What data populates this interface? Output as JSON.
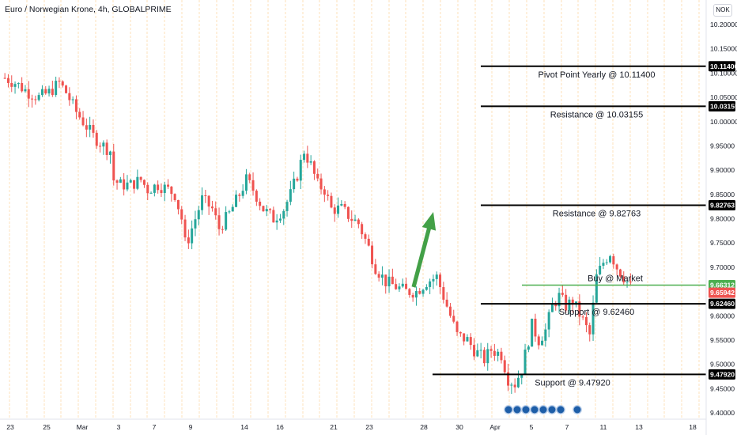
{
  "header": {
    "title": "Euro / Norwegian Krone, 4h, GLOBALPRIME",
    "currency": "NOK"
  },
  "colors": {
    "up": "#26a69a",
    "down": "#ef5350",
    "session_band": "#fde7c6",
    "level_line": "#000000",
    "buy_line": "#4caf50",
    "arrow": "#43a047",
    "event_dot": "#1e5ea8"
  },
  "chart_data": {
    "type": "candlestick",
    "title": "Euro / Norwegian Krone, 4h, GLOBALPRIME",
    "y_axis": {
      "ylim": [
        9.4,
        10.2
      ],
      "ticks": [
        "9.40000",
        "9.45000",
        "9.50000",
        "9.55000",
        "9.60000",
        "9.65000",
        "9.70000",
        "9.75000",
        "9.80000",
        "9.85000",
        "9.90000",
        "9.95000",
        "10.00000",
        "10.05000",
        "10.10000",
        "10.15000",
        "10.20000"
      ]
    },
    "x_axis": {
      "ticks": [
        "23",
        "25",
        "Mar",
        "3",
        "7",
        "9",
        "14",
        "16",
        "21",
        "23",
        "28",
        "30",
        "Apr",
        "5",
        "7",
        "11",
        "13",
        "18"
      ]
    },
    "price_path": [
      [
        0,
        10.09
      ],
      [
        3,
        10.08
      ],
      [
        7,
        10.06
      ],
      [
        10,
        10.05
      ],
      [
        13,
        10.06
      ],
      [
        16,
        10.08
      ],
      [
        18,
        10.06
      ],
      [
        21,
        10.02
      ],
      [
        23,
        10.0
      ],
      [
        26,
        9.97
      ],
      [
        29,
        9.95
      ],
      [
        31,
        9.94
      ],
      [
        32,
        9.88
      ],
      [
        34,
        9.87
      ],
      [
        37,
        9.87
      ],
      [
        40,
        9.88
      ],
      [
        42,
        9.86
      ],
      [
        45,
        9.87
      ],
      [
        48,
        9.86
      ],
      [
        50,
        9.85
      ],
      [
        52,
        9.8
      ],
      [
        53,
        9.75
      ],
      [
        54,
        9.76
      ],
      [
        56,
        9.8
      ],
      [
        58,
        9.84
      ],
      [
        61,
        9.82
      ],
      [
        63,
        9.78
      ],
      [
        66,
        9.81
      ],
      [
        69,
        9.85
      ],
      [
        71,
        9.88
      ],
      [
        73,
        9.86
      ],
      [
        76,
        9.82
      ],
      [
        79,
        9.8
      ],
      [
        82,
        9.82
      ],
      [
        84,
        9.85
      ],
      [
        86,
        9.89
      ],
      [
        88,
        9.94
      ],
      [
        90,
        9.91
      ],
      [
        92,
        9.87
      ],
      [
        94,
        9.86
      ],
      [
        96,
        9.82
      ],
      [
        99,
        9.82
      ],
      [
        102,
        9.8
      ],
      [
        104,
        9.79
      ],
      [
        107,
        9.74
      ],
      [
        109,
        9.7
      ],
      [
        112,
        9.67
      ],
      [
        115,
        9.66
      ],
      [
        118,
        9.65
      ],
      [
        121,
        9.65
      ],
      [
        124,
        9.67
      ],
      [
        127,
        9.68
      ],
      [
        129,
        9.64
      ],
      [
        131,
        9.6
      ],
      [
        133,
        9.56
      ],
      [
        136,
        9.55
      ],
      [
        138,
        9.53
      ],
      [
        141,
        9.51
      ],
      [
        143,
        9.53
      ],
      [
        146,
        9.52
      ],
      [
        148,
        9.47
      ],
      [
        150,
        9.46
      ],
      [
        152,
        9.49
      ],
      [
        154,
        9.55
      ],
      [
        155,
        9.58
      ],
      [
        157,
        9.55
      ],
      [
        159,
        9.57
      ],
      [
        161,
        9.62
      ],
      [
        163,
        9.64
      ],
      [
        165,
        9.62
      ],
      [
        167,
        9.63
      ],
      [
        170,
        9.59
      ],
      [
        172,
        9.56
      ],
      [
        173,
        9.62
      ],
      [
        174,
        9.68
      ],
      [
        176,
        9.71
      ],
      [
        178,
        9.73
      ],
      [
        180,
        9.7
      ],
      [
        182,
        9.68
      ],
      [
        184,
        9.66
      ]
    ],
    "levels": [
      {
        "label": "Pivot Point Yearly @ 10.11400",
        "value": 10.114,
        "tag": "10.11400"
      },
      {
        "label": "Resistance @ 10.03155",
        "value": 10.03155,
        "tag": "10.03155"
      },
      {
        "label": "Resistance @ 9.82763",
        "value": 9.82763,
        "tag": "9.82763"
      },
      {
        "label": "Support @ 9.62460",
        "value": 9.6246,
        "tag": "9.62460"
      },
      {
        "label": "Support @ 9.47920",
        "value": 9.4792,
        "tag": "9.47920"
      }
    ],
    "buy": {
      "label": "Buy @ Market",
      "value": 9.66312,
      "tag": "9.66312"
    },
    "last_price": {
      "value": 9.65942,
      "tag": "9.65942"
    },
    "event_count": 8
  }
}
